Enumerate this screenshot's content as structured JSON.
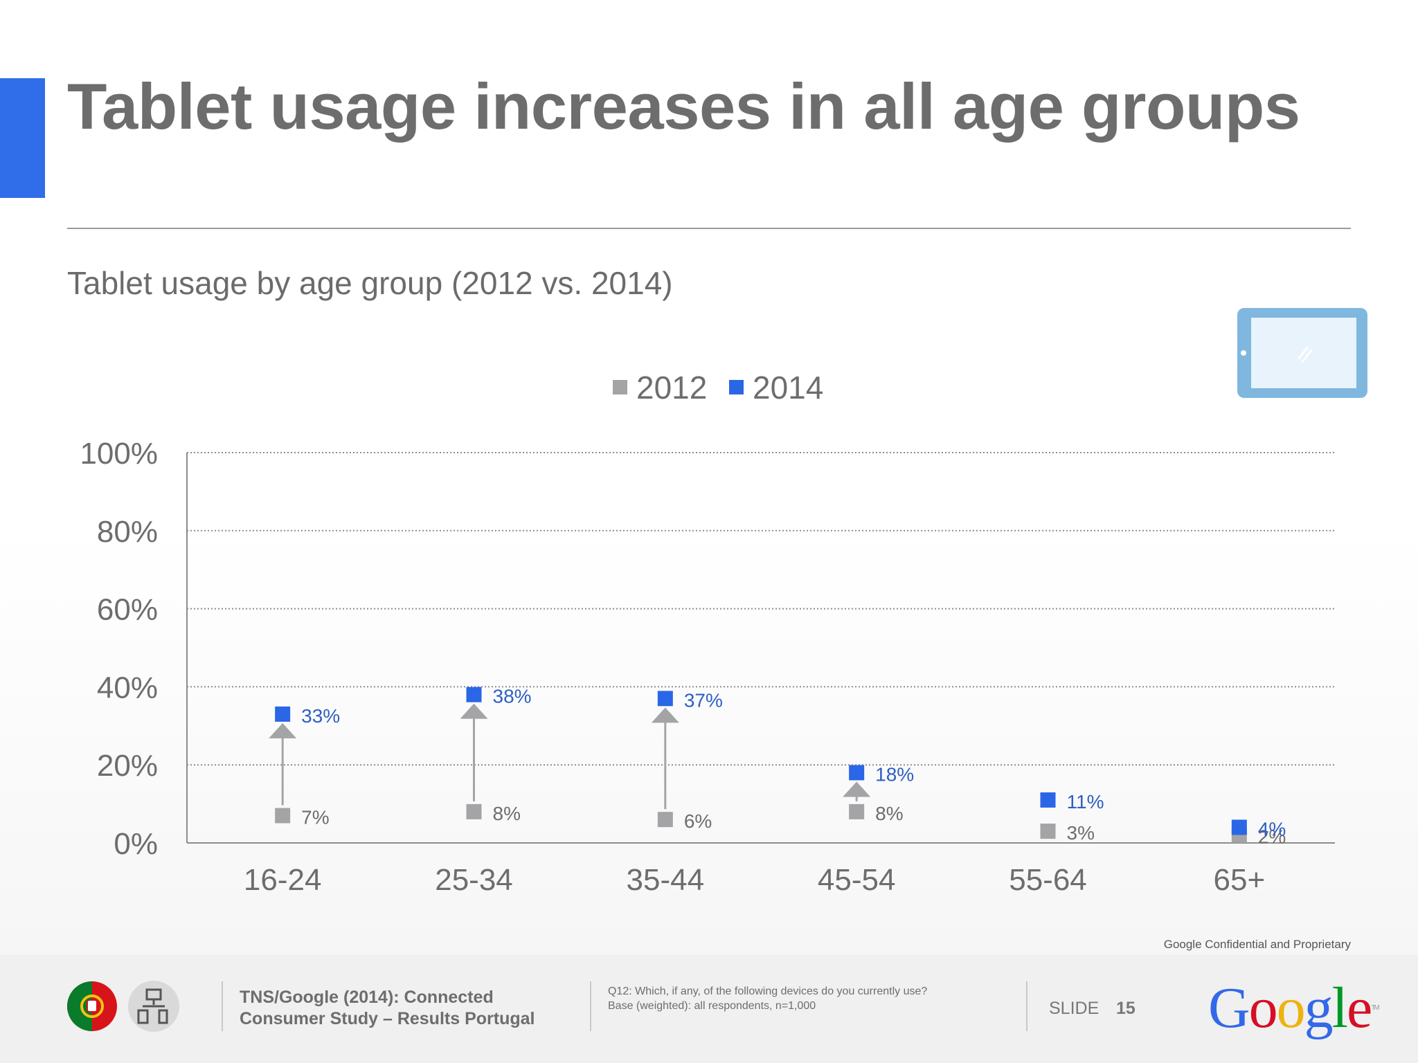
{
  "slide": {
    "title": "Tablet usage increases in all age groups",
    "subtitle": "Tablet usage by age group (2012 vs. 2014)",
    "confidential": "Google Confidential and Proprietary"
  },
  "colors": {
    "accent": "#2f6ee8",
    "series_2012": "#a4a4a6",
    "series_2014": "#2a66e6",
    "label_2014": "#2e5fc4",
    "text_gray": "#6d6d6d"
  },
  "icons": [
    "tablet-icon",
    "portugal-flag-icon",
    "devices-icon"
  ],
  "chart_data": {
    "type": "scatter",
    "title": "",
    "xlabel": "",
    "ylabel": "",
    "categories": [
      "16-24",
      "25-34",
      "35-44",
      "45-54",
      "55-64",
      "65+"
    ],
    "series": [
      {
        "name": "2012",
        "values": [
          7,
          8,
          6,
          8,
          3,
          2
        ],
        "labels": [
          "7%",
          "8%",
          "6%",
          "8%",
          "3%",
          "2%"
        ],
        "color": "#a4a4a6"
      },
      {
        "name": "2014",
        "values": [
          33,
          38,
          37,
          18,
          11,
          4
        ],
        "labels": [
          "33%",
          "38%",
          "37%",
          "18%",
          "11%",
          "4%"
        ],
        "color": "#2a66e6"
      }
    ],
    "ylim": [
      0,
      100
    ],
    "yticks": [
      0,
      20,
      40,
      60,
      80,
      100
    ],
    "ytick_labels": [
      "0%",
      "20%",
      "40%",
      "60%",
      "80%",
      "100%"
    ],
    "grid": true,
    "legend": "top-center",
    "arrows": "from 2012 value up to 2014 value for each age group"
  },
  "footer": {
    "source_line1": "TNS/Google (2014): Connected",
    "source_line2": "Consumer Study – Results Portugal",
    "question_line1": "Q12: Which, if any, of the following devices do you currently use?",
    "question_line2": "Base (weighted): all respondents, n=1,000",
    "slide_label": "SLIDE",
    "slide_number": "15",
    "logo_text": "Google",
    "trademark": "TM"
  }
}
